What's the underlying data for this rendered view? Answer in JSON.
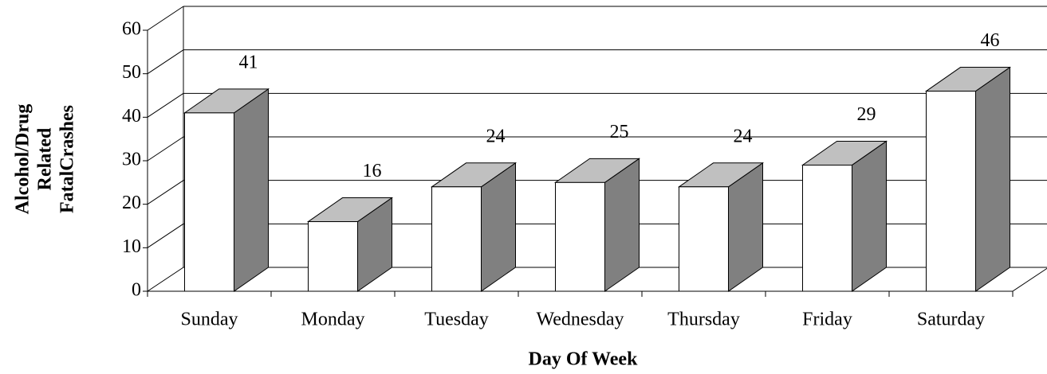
{
  "chart_data": {
    "type": "bar3d",
    "xlabel": "Day Of Week",
    "ylabel": [
      "Alcohol/Drug",
      "Related",
      "FatalCrashes"
    ],
    "categories": [
      "Sunday",
      "Monday",
      "Tuesday",
      "Wednesday",
      "Thursday",
      "Friday",
      "Saturday"
    ],
    "values": [
      41,
      16,
      24,
      25,
      24,
      29,
      46
    ],
    "color": "#ffffff",
    "top_color": "#c0c0c0",
    "side_color": "#808080",
    "ylim": [
      0,
      60
    ],
    "yticks": [
      0,
      10,
      20,
      30,
      40,
      50,
      60
    ],
    "grid": true
  }
}
